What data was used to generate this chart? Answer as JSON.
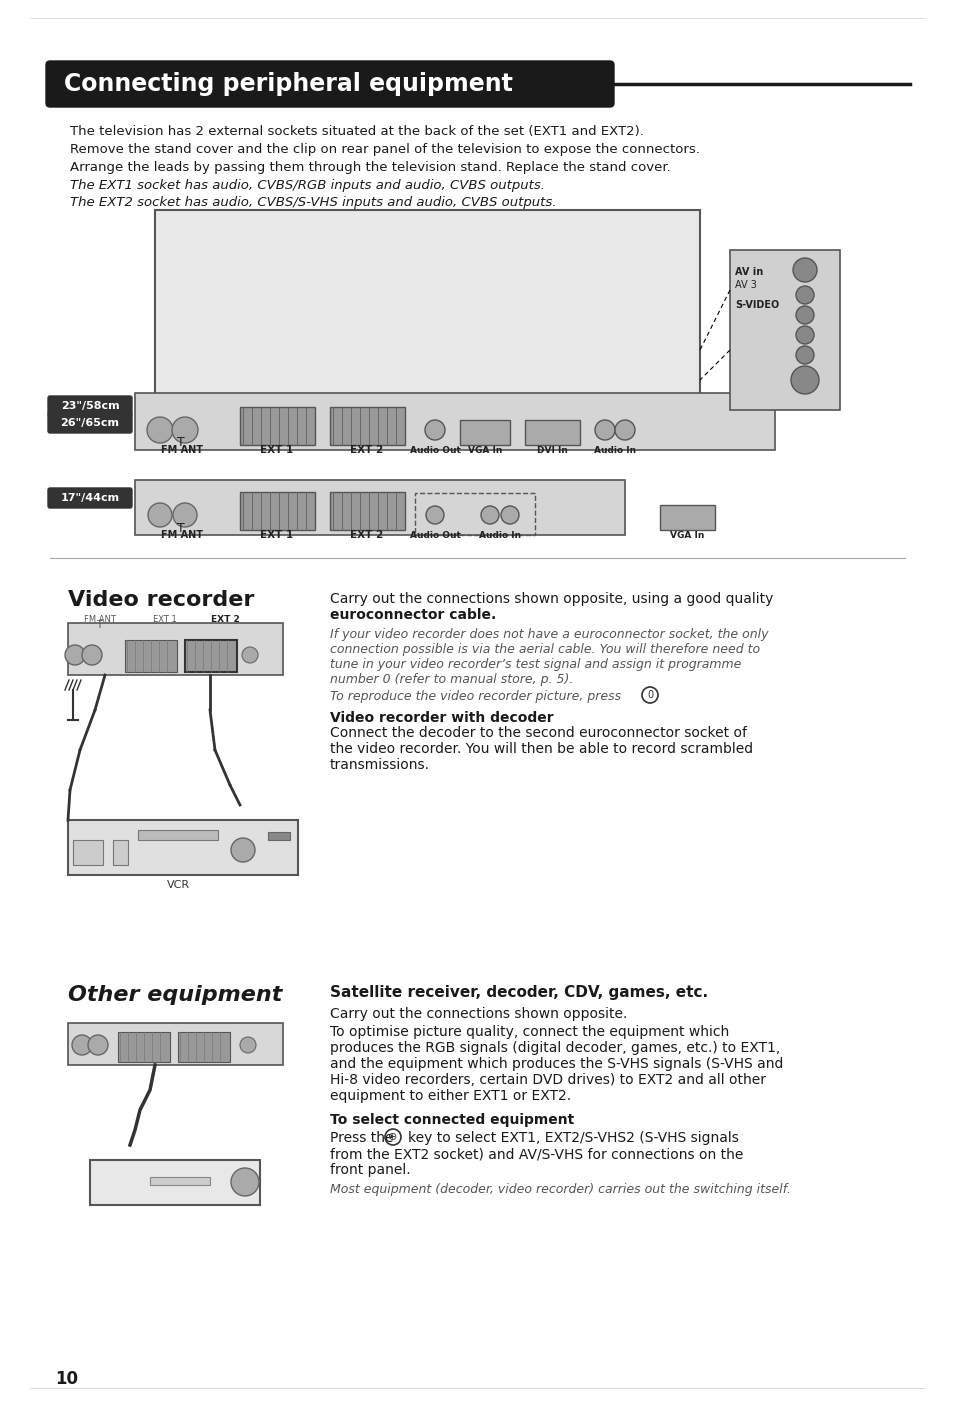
{
  "page_bg": "#ffffff",
  "title": "Connecting peripheral equipment",
  "title_bg": "#1a1a1a",
  "title_color": "#ffffff",
  "body_text_color": "#1a1a1a",
  "gray_text_color": "#555555",
  "intro_lines": [
    "The television has 2 external sockets situated at the back of the set (EXT1 and EXT2).",
    "Remove the stand cover and the clip on rear panel of the television to expose the connectors.",
    "Arrange the leads by passing them through the television stand. Replace the stand cover."
  ],
  "italic_lines": [
    "The EXT1 socket has audio, CVBS/RGB inputs and audio, CVBS outputs.",
    "The EXT2 socket has audio, CVBS/S-VHS inputs and audio, CVBS outputs."
  ],
  "label_23_58": "23\"/58cm",
  "label_26_65": "26\"/65cm",
  "label_17_44": "17\"/44cm",
  "connector_labels_top": [
    "FM ANT",
    "EXT 1",
    "EXT 2",
    "Audio Out",
    "VGA In",
    "DVI In",
    "Audio In"
  ],
  "connector_labels_bot": [
    "FM ANT",
    "EXT 1",
    "EXT 2",
    "Audio Out",
    "Audio In",
    "VGA In"
  ],
  "av_labels": [
    "AV in",
    "AV 3",
    "S-VIDEO"
  ],
  "section1_title": "Video recorder",
  "section1_body_bold": "Carry out the connections shown opposite, using a good quality euroconnector cable.",
  "section1_italic": "If your video recorder does not have a euroconnector socket, the only connection possible is via the aerial cable. You will therefore need to tune in your video recorder’s test signal and assign it programme number 0 (refer to manual store, p. 5).",
  "section1_italic2": "To reproduce the video recorder picture, press",
  "section2_sub_title": "Video recorder with decoder",
  "section2_sub_body": "Connect the decoder to the second euroconnector socket of the video recorder. You will then be able to record scrambled transmissions.",
  "section2_title": "Other equipment",
  "section2_bold_title": "Satellite receiver, decoder, CDV, games, etc.",
  "section2_body1": "Carry out the connections shown opposite.",
  "section2_body2": "To optimise picture quality, connect the equipment which produces the RGB signals (digital decoder, games, etc.) to EXT1, and the equipment which produces the S-VHS signals (S-VHS and Hi-8 video recorders, certain DVD drives) to EXT2 and all other equipment to either EXT1 or EXT2.",
  "section3_bold": "To select connected equipment",
  "section3_body": "Press the",
  "section3_body2": "key to select EXT1, EXT2/S-VHS2 (S-VHS signals from the EXT2 socket) and AV/S-VHS for connections on the front panel.",
  "section3_italic": "Most equipment (decoder, video recorder) carries out the switching itself.",
  "page_number": "10",
  "vcr_label": "VCR"
}
